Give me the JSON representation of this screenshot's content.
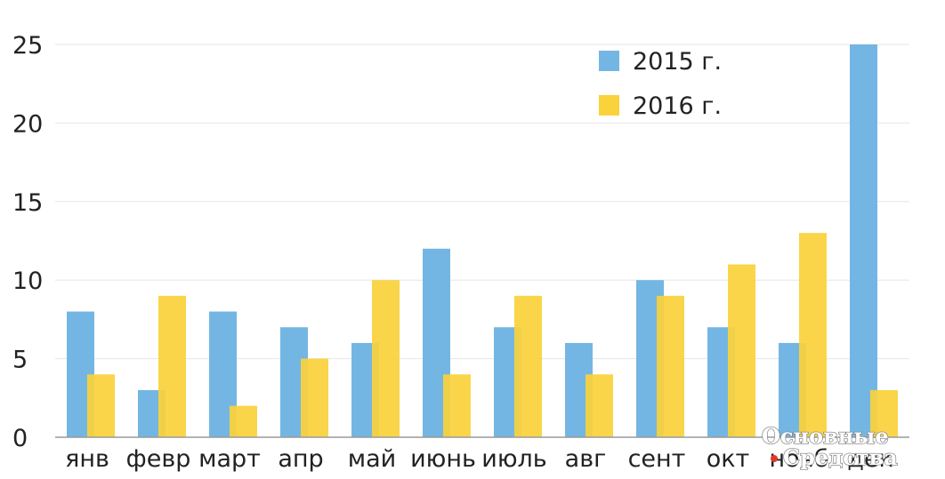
{
  "chart_data": {
    "type": "bar",
    "categories": [
      "янв",
      "февр",
      "март",
      "апр",
      "май",
      "июнь",
      "июль",
      "авг",
      "сент",
      "окт",
      "нояб",
      "дек"
    ],
    "series": [
      {
        "name": "2015 г.",
        "color": "#74b6e3",
        "values": [
          8,
          3,
          8,
          7,
          6,
          12,
          7,
          6,
          10,
          7,
          6,
          25
        ]
      },
      {
        "name": "2016 г.",
        "color": "#fad23c",
        "values": [
          4,
          9,
          2,
          5,
          10,
          4,
          9,
          4,
          9,
          11,
          13,
          3
        ]
      }
    ],
    "title": "",
    "xlabel": "",
    "ylabel": "",
    "ylim": [
      0,
      25
    ],
    "yticks": [
      "0",
      "5",
      "10",
      "15",
      "20",
      "25"
    ],
    "grid": true,
    "legend_position": "top-right"
  },
  "watermark": {
    "line1": "Основные",
    "line2": "Средства",
    "dot_color": "#e0392b"
  }
}
